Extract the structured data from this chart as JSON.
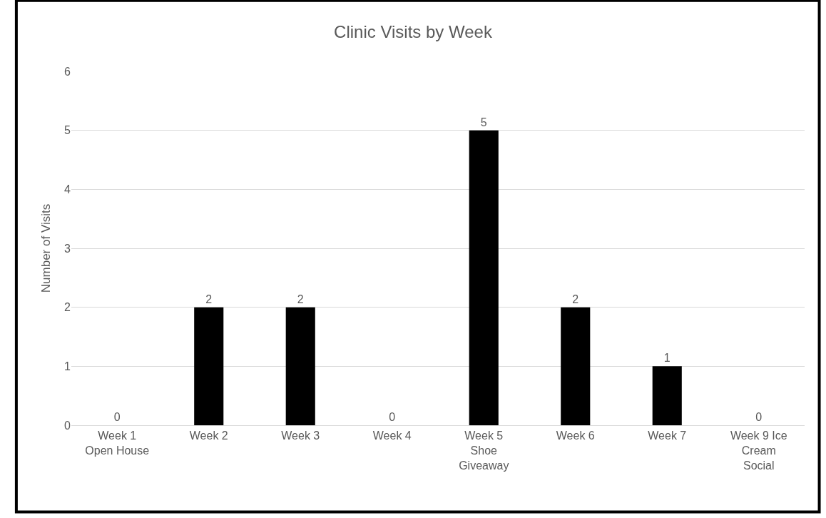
{
  "chart_data": {
    "type": "bar",
    "title": "Clinic Visits by Week",
    "ylabel": "Number of Visits",
    "categories": [
      "Week 1 Open House",
      "Week 2",
      "Week 3",
      "Week 4",
      "Week 5 Shoe Giveaway",
      "Week 6",
      "Week 7",
      "Week 9 Ice Cream Social"
    ],
    "values": [
      0,
      2,
      2,
      0,
      5,
      2,
      1,
      0
    ],
    "color": "#000000",
    "ylim": [
      0,
      6
    ],
    "yticks": [
      0,
      1,
      2,
      3,
      4,
      5,
      6
    ],
    "grid": "y",
    "data_labels": true,
    "legend": false
  }
}
